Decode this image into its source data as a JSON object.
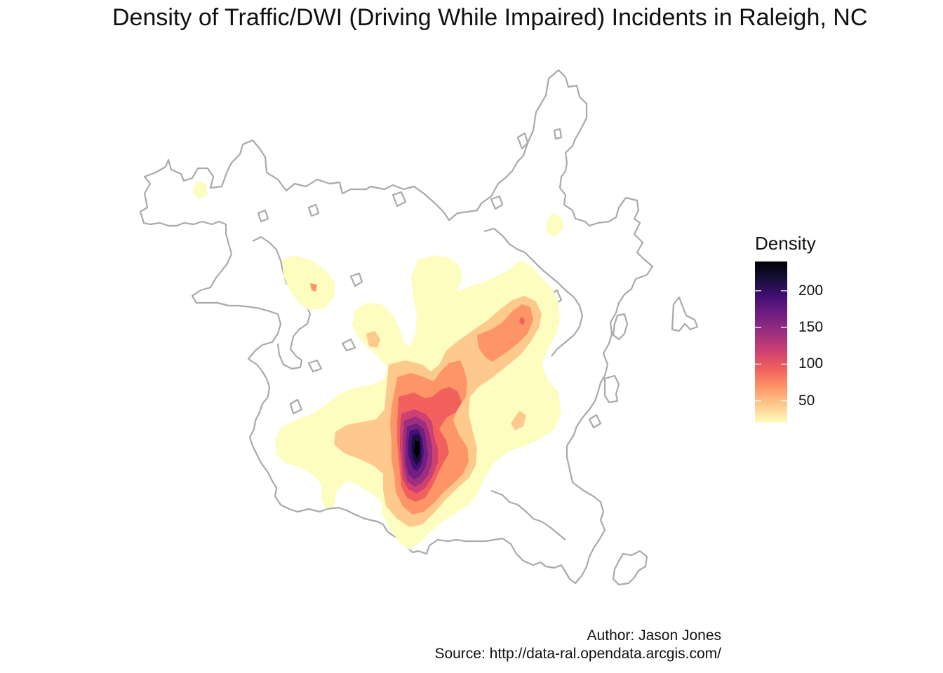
{
  "title": "Density of Traffic/DWI (Driving While Impaired) Incidents in Raleigh, NC",
  "legend": {
    "title": "Density",
    "ticks": [
      {
        "label": "200",
        "value": 200
      },
      {
        "label": "150",
        "value": 150
      },
      {
        "label": "100",
        "value": 100
      },
      {
        "label": "50",
        "value": 50
      }
    ],
    "range": [
      20,
      240
    ],
    "colors": [
      "#fcfdbf",
      "#fec98d",
      "#fd9567",
      "#f1605d",
      "#cd4071",
      "#9e2f7f",
      "#721f81",
      "#440f76",
      "#180f3d",
      "#000004"
    ]
  },
  "caption": {
    "author": "Author: Jason Jones",
    "source": "Source: http://data-ral.opendata.arcgis.com/"
  },
  "boundary_color": "#a9a9a9"
}
